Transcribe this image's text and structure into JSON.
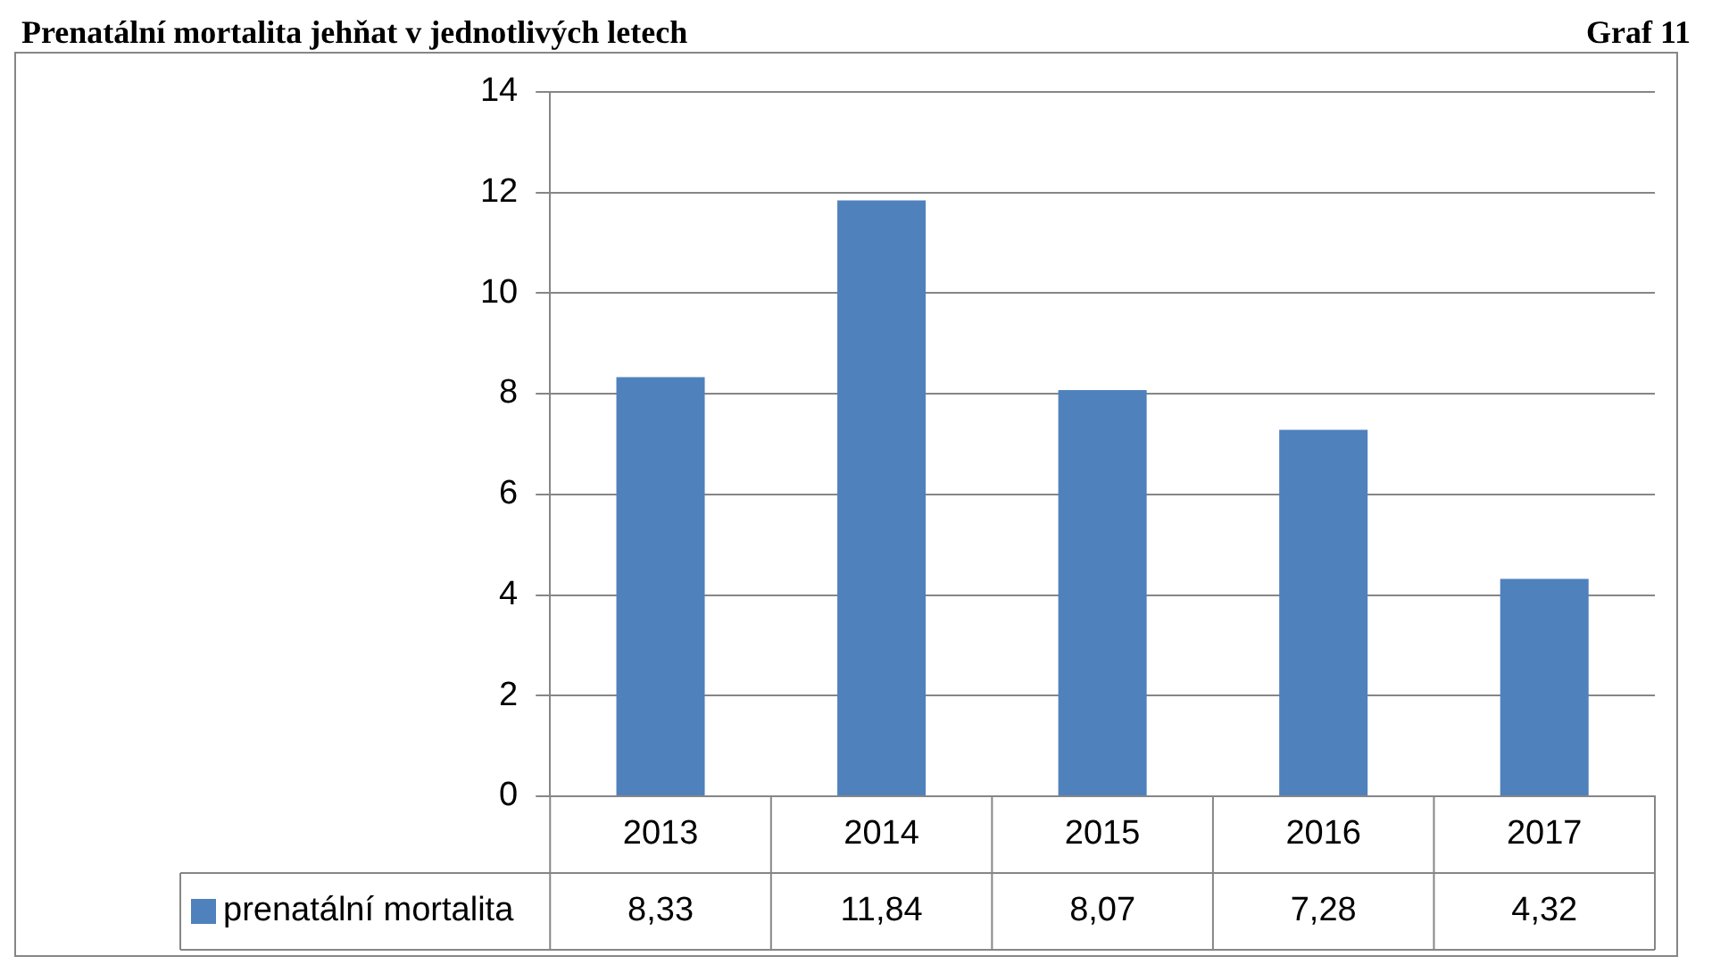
{
  "chart_data": {
    "type": "bar",
    "title": "Prenatální mortalita jehňat v jednotlivých letech",
    "subtitle": "Graf 11",
    "categories": [
      "2013",
      "2014",
      "2015",
      "2016",
      "2017"
    ],
    "series": [
      {
        "name": "prenatální mortalita",
        "color": "#4f81bd",
        "values": [
          8.33,
          11.84,
          8.07,
          7.28,
          4.32
        ],
        "value_labels": [
          "8,33",
          "11,84",
          "8,07",
          "7,28",
          "4,32"
        ]
      }
    ],
    "ylim": [
      0,
      14
    ],
    "yticks": [
      0,
      2,
      4,
      6,
      8,
      10,
      12,
      14
    ],
    "grid": "y",
    "legend": "bottom left"
  }
}
